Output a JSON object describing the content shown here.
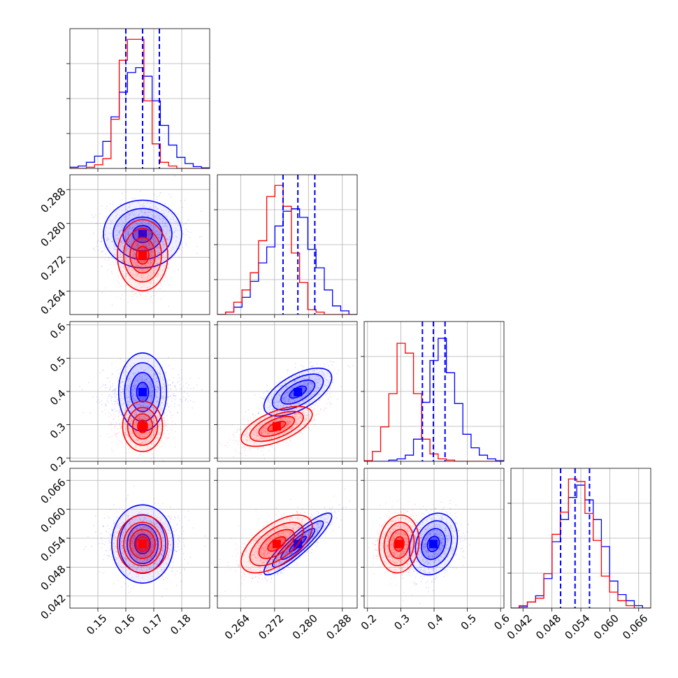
{
  "chart_data": {
    "type": "corner",
    "grid": true,
    "parameters": 4,
    "axes": [
      {
        "ticks": [
          0.15,
          0.16,
          0.17,
          0.18
        ],
        "tick_labels": [
          "0.15",
          "0.16",
          "0.17",
          "0.18"
        ],
        "range": [
          0.14,
          0.19
        ]
      },
      {
        "ticks": [
          0.264,
          0.272,
          0.28,
          0.288
        ],
        "tick_labels": [
          "0.264",
          "0.272",
          "0.280",
          "0.288"
        ],
        "range": [
          0.2585,
          0.2915
        ]
      },
      {
        "ticks": [
          0.2,
          0.3,
          0.4,
          0.5,
          0.6
        ],
        "tick_labels": [
          "0.2",
          "0.3",
          "0.4",
          "0.5",
          "0.6"
        ],
        "range": [
          0.19,
          0.61
        ]
      },
      {
        "ticks": [
          0.042,
          0.048,
          0.054,
          0.06,
          0.066
        ],
        "tick_labels": [
          "0.042",
          "0.048",
          "0.054",
          "0.060",
          "0.066"
        ],
        "range": [
          0.0395,
          0.0685
        ]
      }
    ],
    "series": [
      {
        "color": "#0000ff",
        "quantiles": [
          [
            0.16,
            0.166,
            0.172
          ],
          [
            0.274,
            0.2775,
            0.2815
          ],
          [
            0.365,
            0.398,
            0.433
          ],
          [
            0.0498,
            0.0528,
            0.0558
          ]
        ],
        "mean": [
          0.166,
          0.2775,
          0.398,
          0.0528
        ],
        "sd": [
          0.007,
          0.004,
          0.036,
          0.0032
        ],
        "corr": [
          [
            1,
            0,
            0,
            0
          ],
          [
            0,
            1,
            0.6,
            0.9
          ],
          [
            0,
            0.6,
            1,
            0.2
          ],
          [
            0,
            0.9,
            0.2,
            1
          ]
        ],
        "hist_heights": [
          [
            0.01,
            0.02,
            0.05,
            0.1,
            0.22,
            0.42,
            0.62,
            0.78,
            0.82,
            0.75,
            0.55,
            0.35,
            0.19,
            0.09,
            0.04,
            0.015,
            0.005
          ],
          [
            0.0,
            0.02,
            0.06,
            0.14,
            0.27,
            0.42,
            0.55,
            0.72,
            0.84,
            0.86,
            0.79,
            0.53,
            0.38,
            0.2,
            0.07,
            0.03,
            0.0
          ],
          [
            0.0,
            0.0,
            0.0,
            0.01,
            0.02,
            0.05,
            0.18,
            0.48,
            0.82,
            1.0,
            0.72,
            0.47,
            0.22,
            0.11,
            0.05,
            0.02,
            0.005
          ],
          [
            0.0,
            0.01,
            0.05,
            0.1,
            0.24,
            0.54,
            0.72,
            0.9,
            1.0,
            0.88,
            0.72,
            0.5,
            0.22,
            0.11,
            0.06,
            0.02,
            0.0
          ]
        ]
      },
      {
        "color": "#ff0000",
        "mean": [
          0.166,
          0.2725,
          0.295,
          0.0528
        ],
        "sd": [
          0.0045,
          0.0042,
          0.03,
          0.003
        ],
        "corr": [
          [
            1,
            0,
            0,
            0
          ],
          [
            0,
            1,
            0.6,
            0.6
          ],
          [
            0,
            0.6,
            1,
            0.1
          ],
          [
            0,
            0.6,
            0.1,
            1
          ]
        ],
        "hist_heights": [
          [
            0.0,
            0.0,
            0.01,
            0.03,
            0.08,
            0.4,
            0.88,
            1.05,
            1.05,
            0.55,
            0.2,
            0.05,
            0.02,
            0.0,
            0.0,
            0.0,
            0.0
          ],
          [
            0.0,
            0.02,
            0.1,
            0.2,
            0.34,
            0.6,
            0.96,
            1.05,
            0.88,
            0.5,
            0.26,
            0.04,
            0.02,
            0.0,
            0.0,
            0.0,
            0.0
          ],
          [
            0.005,
            0.08,
            0.28,
            0.55,
            0.96,
            0.88,
            0.55,
            0.18,
            0.06,
            0.02,
            0.01,
            0.0,
            0.0,
            0.0,
            0.0,
            0.0,
            0.0
          ],
          [
            0.0,
            0.02,
            0.05,
            0.08,
            0.28,
            0.6,
            0.78,
            1.05,
            1.03,
            0.77,
            0.55,
            0.26,
            0.13,
            0.06,
            0.02,
            0.0,
            0.0
          ]
        ]
      }
    ],
    "contour_levels_sigma": [
      0.5,
      1.0,
      1.5,
      2.0
    ]
  }
}
